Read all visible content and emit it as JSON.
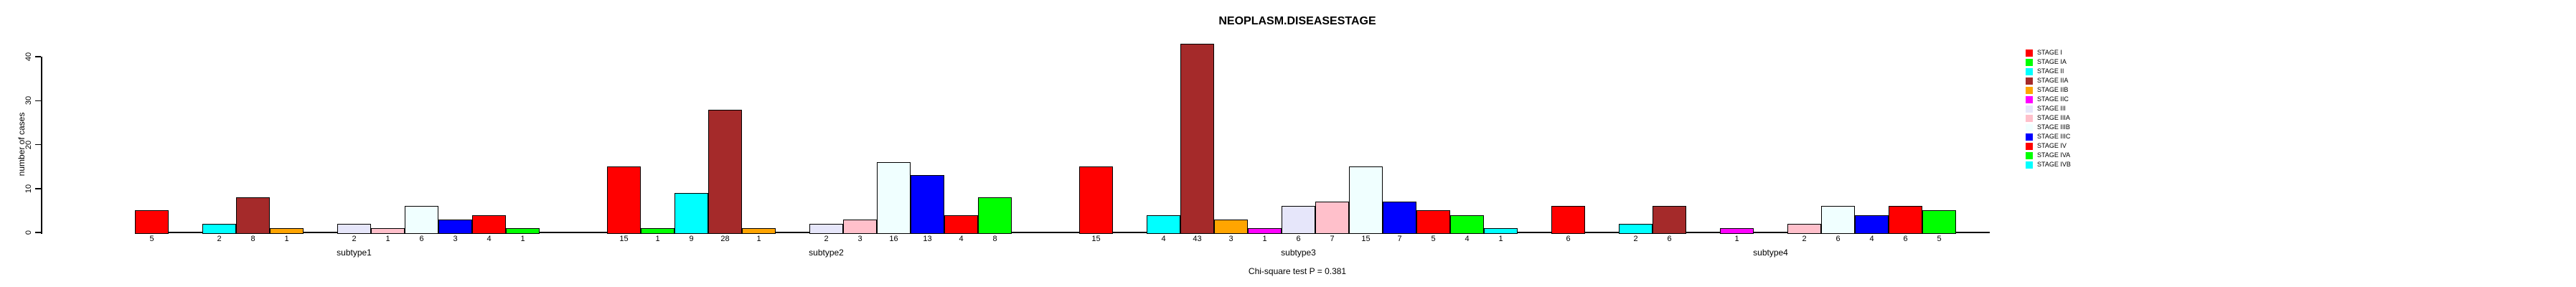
{
  "title": "NEOPLASM.DISEASESTAGE",
  "footer_note": "Chi-square test P = 0.381",
  "chart_data": {
    "type": "bar",
    "title": "NEOPLASM.DISEASESTAGE",
    "xlabel": "",
    "ylabel": "number of cases",
    "ylim": [
      0,
      40
    ],
    "yticks": [
      0,
      10,
      20,
      30,
      40
    ],
    "grid": false,
    "legend_position": "right",
    "annotation": "Chi-square test P = 0.381",
    "categories": [
      "subtype1",
      "subtype2",
      "subtype3",
      "subtype4"
    ],
    "series": [
      {
        "name": "STAGE I",
        "color": "#FF0000",
        "values": [
          5,
          15,
          15,
          6
        ]
      },
      {
        "name": "STAGE IA",
        "color": "#00FF00",
        "values": [
          0,
          1,
          0,
          0
        ]
      },
      {
        "name": "STAGE II",
        "color": "#00FFFF",
        "values": [
          2,
          9,
          4,
          2
        ]
      },
      {
        "name": "STAGE IIA",
        "color": "#A52A2A",
        "values": [
          8,
          28,
          43,
          6
        ]
      },
      {
        "name": "STAGE IIB",
        "color": "#FFA500",
        "values": [
          1,
          1,
          3,
          0
        ]
      },
      {
        "name": "STAGE IIC",
        "color": "#FF00FF",
        "values": [
          0,
          0,
          1,
          1
        ]
      },
      {
        "name": "STAGE III",
        "color": "#E6E6FA",
        "values": [
          2,
          2,
          6,
          0
        ]
      },
      {
        "name": "STAGE IIIA",
        "color": "#FFC0CB",
        "values": [
          1,
          3,
          7,
          2
        ]
      },
      {
        "name": "STAGE IIIB",
        "color": "#F0FFFF",
        "values": [
          6,
          16,
          15,
          6
        ]
      },
      {
        "name": "STAGE IIIC",
        "color": "#0000FF",
        "values": [
          3,
          13,
          7,
          4
        ]
      },
      {
        "name": "STAGE IV",
        "color": "#FF0000",
        "values": [
          4,
          4,
          5,
          6
        ]
      },
      {
        "name": "STAGE IVA",
        "color": "#00FF00",
        "values": [
          1,
          8,
          4,
          5
        ]
      },
      {
        "name": "STAGE IVB",
        "color": "#00FFFF",
        "values": [
          0,
          0,
          1,
          0
        ]
      }
    ],
    "bar_value_labels_shown_for_nonzero_bars": true
  }
}
